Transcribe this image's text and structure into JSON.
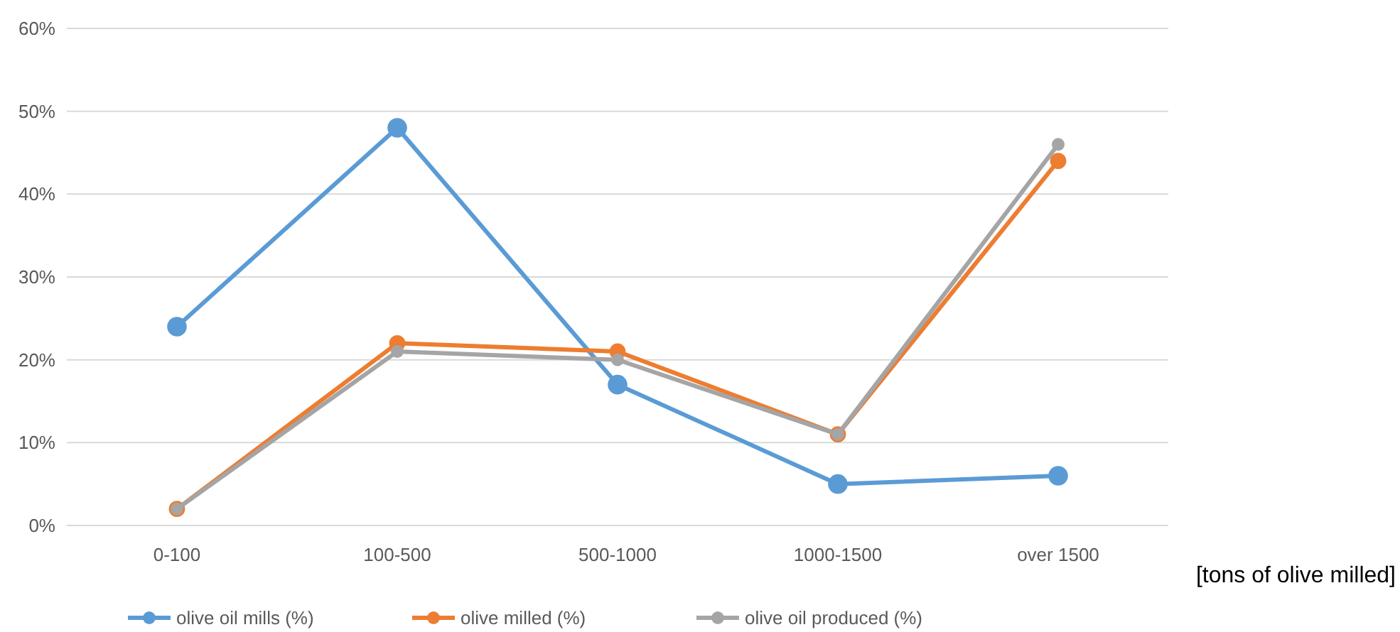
{
  "chart_data": {
    "type": "line",
    "xlabel": "[tons of olive milled]",
    "categories": [
      "0-100",
      "100-500",
      "500-1000",
      "1000-1500",
      "over 1500"
    ],
    "series": [
      {
        "name": "olive oil mills (%)",
        "color": "#5b9bd5",
        "values": [
          24,
          48,
          17,
          5,
          6
        ]
      },
      {
        "name": "olive milled (%)",
        "color": "#ed7d31",
        "values": [
          2,
          22,
          21,
          11,
          44
        ]
      },
      {
        "name": "olive oil produced (%)",
        "color": "#a5a5a5",
        "values": [
          2,
          21,
          20,
          11,
          46
        ]
      }
    ],
    "ylim": [
      0,
      60
    ],
    "yticks": [
      {
        "value": 0,
        "label": "0%"
      },
      {
        "value": 10,
        "label": "10%"
      },
      {
        "value": 20,
        "label": "20%"
      },
      {
        "value": 30,
        "label": "30%"
      },
      {
        "value": 40,
        "label": "40%"
      },
      {
        "value": 50,
        "label": "50%"
      },
      {
        "value": 60,
        "label": "60%"
      }
    ],
    "grid": "y",
    "legend": "bottom",
    "marker": "circle",
    "line_style": "solid"
  }
}
